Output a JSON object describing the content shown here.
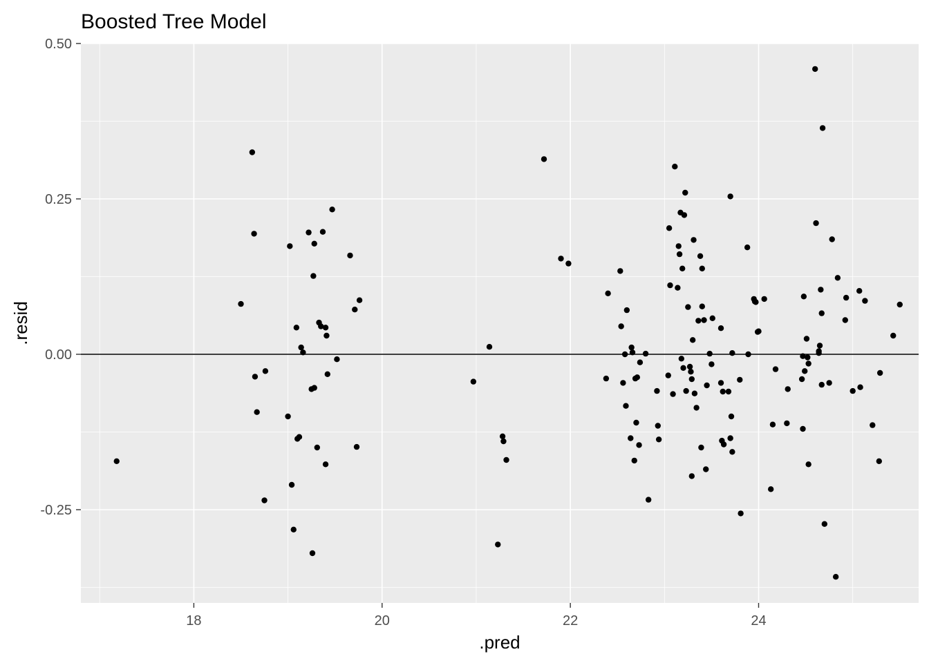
{
  "chart_data": {
    "type": "scatter",
    "title": "Boosted Tree Model",
    "xlabel": ".pred",
    "ylabel": ".resid",
    "xlim": [
      16.8,
      25.7
    ],
    "ylim": [
      -0.4,
      0.5
    ],
    "x_ticks": [
      18,
      20,
      22,
      24
    ],
    "x_tick_labels": [
      "18",
      "20",
      "22",
      "24"
    ],
    "y_ticks": [
      -0.25,
      0,
      0.25,
      0.5
    ],
    "y_tick_labels": [
      "-0.25",
      "0.00",
      "0.25",
      "0.50"
    ],
    "reference_line_y": 0,
    "grid": true,
    "colors": {
      "panel": "#ebebeb",
      "grid": "#ffffff",
      "point": "#000000",
      "reference": "#000000"
    },
    "points": [
      [
        17.18,
        -0.172
      ],
      [
        18.5,
        0.081
      ],
      [
        18.62,
        0.325
      ],
      [
        18.64,
        0.194
      ],
      [
        18.65,
        -0.036
      ],
      [
        18.67,
        -0.093
      ],
      [
        18.75,
        -0.235
      ],
      [
        18.76,
        -0.027
      ],
      [
        19.0,
        -0.1
      ],
      [
        19.02,
        0.174
      ],
      [
        19.04,
        -0.21
      ],
      [
        19.06,
        -0.282
      ],
      [
        19.09,
        0.043
      ],
      [
        19.1,
        -0.136
      ],
      [
        19.12,
        -0.133
      ],
      [
        19.14,
        0.011
      ],
      [
        19.16,
        0.003
      ],
      [
        19.22,
        0.196
      ],
      [
        19.25,
        -0.056
      ],
      [
        19.26,
        -0.32
      ],
      [
        19.27,
        0.126
      ],
      [
        19.28,
        0.178
      ],
      [
        19.28,
        -0.054
      ],
      [
        19.31,
        -0.15
      ],
      [
        19.33,
        0.051
      ],
      [
        19.35,
        0.045
      ],
      [
        19.37,
        0.197
      ],
      [
        19.4,
        0.043
      ],
      [
        19.41,
        0.03
      ],
      [
        19.4,
        -0.177
      ],
      [
        19.42,
        -0.032
      ],
      [
        19.47,
        0.233
      ],
      [
        19.52,
        -0.008
      ],
      [
        19.66,
        0.159
      ],
      [
        19.71,
        0.072
      ],
      [
        19.73,
        -0.149
      ],
      [
        19.76,
        0.087
      ],
      [
        20.97,
        -0.044
      ],
      [
        21.14,
        0.012
      ],
      [
        21.23,
        -0.306
      ],
      [
        21.28,
        -0.132
      ],
      [
        21.29,
        -0.14
      ],
      [
        21.32,
        -0.17
      ],
      [
        21.72,
        0.314
      ],
      [
        21.9,
        0.154
      ],
      [
        21.98,
        0.146
      ],
      [
        22.38,
        -0.039
      ],
      [
        22.4,
        0.098
      ],
      [
        22.53,
        0.134
      ],
      [
        22.54,
        0.045
      ],
      [
        22.56,
        -0.046
      ],
      [
        22.58,
        0.0
      ],
      [
        22.59,
        -0.083
      ],
      [
        22.6,
        0.071
      ],
      [
        22.64,
        -0.135
      ],
      [
        22.65,
        0.011
      ],
      [
        22.66,
        0.003
      ],
      [
        22.68,
        -0.171
      ],
      [
        22.69,
        -0.039
      ],
      [
        22.7,
        -0.11
      ],
      [
        22.71,
        -0.037
      ],
      [
        22.73,
        -0.146
      ],
      [
        22.74,
        -0.013
      ],
      [
        22.8,
        0.001
      ],
      [
        22.83,
        -0.234
      ],
      [
        22.92,
        -0.059
      ],
      [
        22.93,
        -0.115
      ],
      [
        22.94,
        -0.137
      ],
      [
        23.04,
        -0.034
      ],
      [
        23.05,
        0.203
      ],
      [
        23.06,
        0.111
      ],
      [
        23.09,
        -0.064
      ],
      [
        23.11,
        0.302
      ],
      [
        23.14,
        0.107
      ],
      [
        23.15,
        0.174
      ],
      [
        23.16,
        0.161
      ],
      [
        23.17,
        0.228
      ],
      [
        23.18,
        -0.007
      ],
      [
        23.19,
        0.138
      ],
      [
        23.2,
        -0.022
      ],
      [
        23.21,
        0.224
      ],
      [
        23.22,
        0.26
      ],
      [
        23.23,
        -0.059
      ],
      [
        23.25,
        0.076
      ],
      [
        23.27,
        -0.02
      ],
      [
        23.28,
        -0.028
      ],
      [
        23.29,
        -0.04
      ],
      [
        23.29,
        -0.196
      ],
      [
        23.3,
        0.023
      ],
      [
        23.31,
        0.184
      ],
      [
        23.32,
        -0.063
      ],
      [
        23.34,
        -0.086
      ],
      [
        23.36,
        0.054
      ],
      [
        23.38,
        0.158
      ],
      [
        23.39,
        -0.15
      ],
      [
        23.4,
        0.138
      ],
      [
        23.4,
        0.077
      ],
      [
        23.42,
        0.055
      ],
      [
        23.44,
        -0.185
      ],
      [
        23.45,
        -0.05
      ],
      [
        23.48,
        0.001
      ],
      [
        23.5,
        -0.016
      ],
      [
        23.51,
        0.058
      ],
      [
        23.6,
        0.042
      ],
      [
        23.6,
        -0.046
      ],
      [
        23.61,
        -0.139
      ],
      [
        23.62,
        -0.06
      ],
      [
        23.63,
        -0.145
      ],
      [
        23.68,
        -0.06
      ],
      [
        23.7,
        -0.135
      ],
      [
        23.7,
        0.254
      ],
      [
        23.71,
        -0.1
      ],
      [
        23.72,
        0.002
      ],
      [
        23.72,
        -0.157
      ],
      [
        23.8,
        -0.041
      ],
      [
        23.81,
        -0.256
      ],
      [
        23.88,
        0.172
      ],
      [
        23.89,
        0.0
      ],
      [
        23.95,
        0.089
      ],
      [
        23.96,
        0.085
      ],
      [
        23.97,
        0.084
      ],
      [
        23.99,
        0.036
      ],
      [
        24.0,
        0.037
      ],
      [
        24.06,
        0.089
      ],
      [
        24.13,
        -0.217
      ],
      [
        24.15,
        -0.113
      ],
      [
        24.18,
        -0.024
      ],
      [
        24.3,
        -0.111
      ],
      [
        24.31,
        -0.056
      ],
      [
        24.46,
        -0.04
      ],
      [
        24.47,
        -0.003
      ],
      [
        24.47,
        -0.12
      ],
      [
        24.48,
        0.093
      ],
      [
        24.49,
        -0.027
      ],
      [
        24.51,
        0.025
      ],
      [
        24.52,
        -0.005
      ],
      [
        24.53,
        -0.015
      ],
      [
        24.53,
        -0.177
      ],
      [
        24.6,
        0.459
      ],
      [
        24.61,
        0.211
      ],
      [
        24.64,
        0.002
      ],
      [
        24.64,
        0.005
      ],
      [
        24.65,
        0.014
      ],
      [
        24.66,
        0.104
      ],
      [
        24.67,
        0.066
      ],
      [
        24.67,
        -0.049
      ],
      [
        24.68,
        0.364
      ],
      [
        24.7,
        -0.273
      ],
      [
        24.75,
        -0.046
      ],
      [
        24.78,
        0.185
      ],
      [
        24.82,
        -0.358
      ],
      [
        24.84,
        0.123
      ],
      [
        24.92,
        0.055
      ],
      [
        24.93,
        0.091
      ],
      [
        25.0,
        -0.059
      ],
      [
        25.07,
        0.102
      ],
      [
        25.08,
        -0.053
      ],
      [
        25.13,
        0.086
      ],
      [
        25.21,
        -0.114
      ],
      [
        25.28,
        -0.172
      ],
      [
        25.29,
        -0.03
      ],
      [
        25.43,
        0.03
      ],
      [
        25.5,
        0.08
      ]
    ]
  }
}
